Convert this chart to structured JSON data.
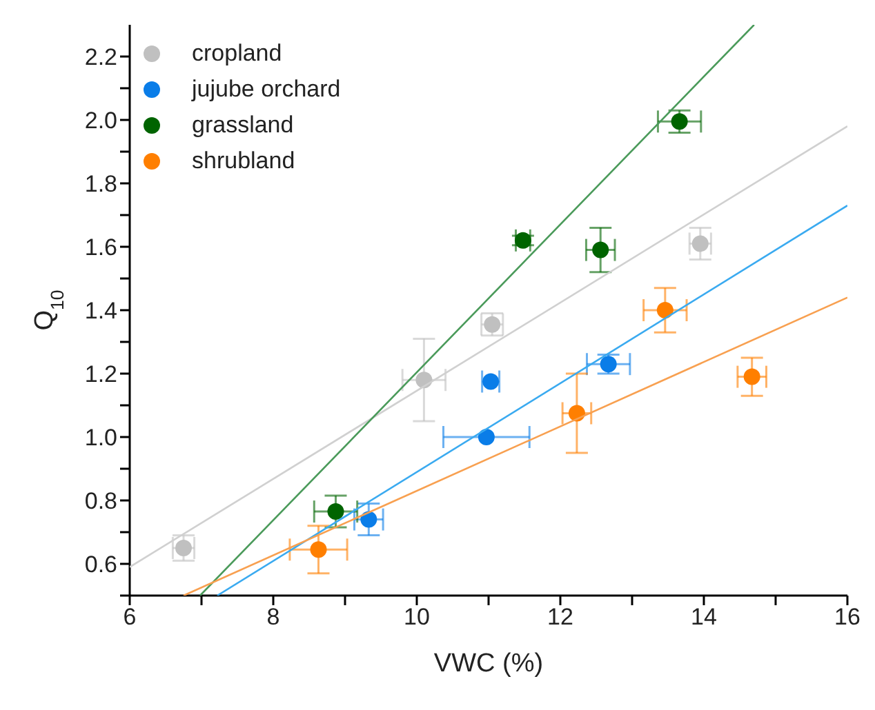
{
  "chart_data": {
    "type": "scatter",
    "xlabel": "VWC (%)",
    "ylabel": "Q$_{10}$",
    "xlim": [
      6,
      16
    ],
    "ylim": [
      0.5,
      2.3
    ],
    "xticks": [
      6,
      {
        "value": 7,
        "label": null
      },
      8,
      {
        "value": 9,
        "label": null
      },
      10,
      {
        "value": 11,
        "label": null
      },
      12,
      {
        "value": 13,
        "label": null
      },
      14,
      {
        "value": 15,
        "label": null
      },
      16
    ],
    "yticks": [
      {
        "value": 0.5,
        "label": null
      },
      {
        "value": 0.6,
        "label": "0.6"
      },
      {
        "value": 0.7,
        "label": null
      },
      {
        "value": 0.8,
        "label": "0.8"
      },
      {
        "value": 0.9,
        "label": null
      },
      {
        "value": 1.0,
        "label": "1.0"
      },
      {
        "value": 1.1,
        "label": null
      },
      {
        "value": 1.2,
        "label": "1.2"
      },
      {
        "value": 1.3,
        "label": null
      },
      {
        "value": 1.4,
        "label": "1.4"
      },
      {
        "value": 1.5,
        "label": null
      },
      {
        "value": 1.6,
        "label": "1.6"
      },
      {
        "value": 1.7,
        "label": null
      },
      {
        "value": 1.8,
        "label": "1.8"
      },
      {
        "value": 1.9,
        "label": null
      },
      {
        "value": 2.0,
        "label": "2.0"
      },
      {
        "value": 2.1,
        "label": null
      },
      {
        "value": 2.2,
        "label": "2.2"
      }
    ],
    "grid": false,
    "legend": "top left",
    "marker": "circle",
    "series": [
      {
        "name": "cropland",
        "color": "#c0c0c0",
        "x": [
          6.75,
          10.1,
          11.05,
          13.95
        ],
        "values": [
          0.65,
          1.18,
          1.355,
          1.61
        ],
        "errors": [
          0.04,
          0.13,
          0.035,
          0.05
        ],
        "xerrors": [
          0.15,
          0.3,
          0.15,
          0.15
        ]
      },
      {
        "name": "jujube orchard",
        "color": "#0a7de8",
        "x": [
          9.33,
          10.97,
          11.03,
          12.67
        ],
        "values": [
          0.74,
          1.0,
          1.175,
          1.23
        ],
        "errors": [
          0.05,
          null,
          null,
          0.03
        ],
        "xerrors": [
          0.2,
          0.6,
          0.12,
          0.3
        ]
      },
      {
        "name": "grassland",
        "color": "#006400",
        "x": [
          8.87,
          11.48,
          12.56,
          13.66
        ],
        "values": [
          0.765,
          1.62,
          1.59,
          1.995
        ],
        "errors": [
          0.05,
          0.015,
          0.07,
          0.035
        ],
        "xerrors": [
          0.3,
          0.1,
          0.2,
          0.3
        ]
      },
      {
        "name": "shrubland",
        "color": "#ff7f00",
        "x": [
          8.63,
          12.23,
          13.46,
          14.67
        ],
        "values": [
          0.645,
          1.075,
          1.4,
          1.19
        ],
        "errors": [
          0.075,
          0.125,
          0.07,
          0.06
        ],
        "xerrors": [
          0.4,
          0.2,
          0.3,
          0.2
        ]
      },
      {
        "type": "line",
        "marker": "none",
        "color": "#d0d0d0",
        "x": [
          6,
          16
        ],
        "values": [
          0.59,
          1.98
        ]
      },
      {
        "type": "line",
        "marker": "none",
        "color": "#3aaaf0",
        "x": [
          7.22,
          16
        ],
        "values": [
          0.5,
          1.73
        ]
      },
      {
        "type": "line",
        "marker": "none",
        "color": "#4a9a5a",
        "x": [
          6.98,
          14.7
        ],
        "values": [
          0.5,
          2.3
        ]
      },
      {
        "type": "line",
        "marker": "none",
        "color": "#f8a050",
        "x": [
          6.75,
          16
        ],
        "values": [
          0.5,
          1.44
        ]
      }
    ]
  }
}
